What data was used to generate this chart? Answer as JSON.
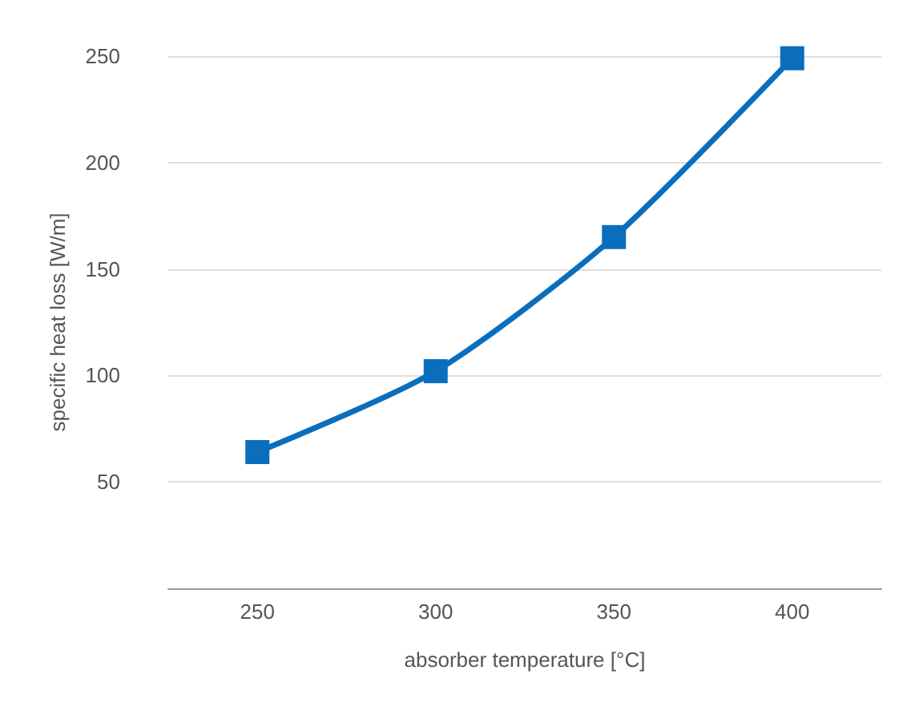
{
  "chart_data": {
    "type": "line",
    "xlabel": "absorber temperature [°C]",
    "ylabel": "specific heat loss [W/m]",
    "x": [
      250,
      300,
      350,
      400
    ],
    "series": [
      {
        "color": "#0a6ebd",
        "values": [
          64,
          102,
          165,
          249
        ]
      }
    ],
    "xlim": [
      225,
      425
    ],
    "xticks": [
      250,
      300,
      350,
      400
    ],
    "ylim": [
      0,
      250
    ],
    "yticks": [
      50,
      100,
      150,
      200,
      250
    ],
    "grid": "y",
    "marker": "square",
    "line_style": "solid"
  }
}
